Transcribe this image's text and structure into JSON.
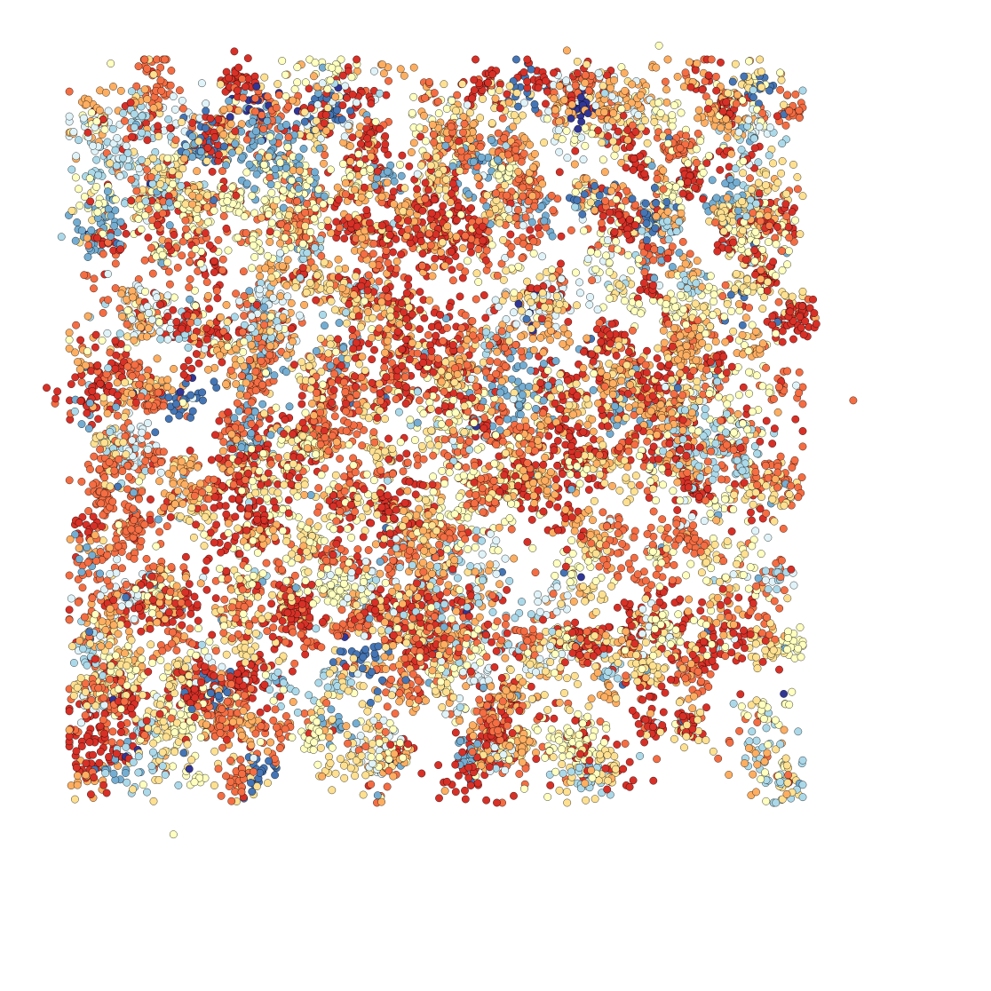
{
  "chart_data": {
    "type": "scatter",
    "title": "",
    "xlabel": "",
    "ylabel": "",
    "axes_visible": false,
    "grid": false,
    "legend": "none",
    "xlim": [
      0,
      1
    ],
    "ylim": [
      0,
      1
    ],
    "marker": "circle",
    "marker_edge_color": "#000000",
    "palette": [
      "#313695",
      "#4575b4",
      "#74add1",
      "#abd9e9",
      "#e0f3f8",
      "#ffffbf",
      "#fee090",
      "#fdae61",
      "#f46d43",
      "#d73027"
    ],
    "approx_point_count": 14000,
    "data_region": {
      "x": [
        0.08,
        0.8
      ],
      "y": [
        0.2,
        0.93
      ]
    },
    "outliers": [
      {
        "x": 0.175,
        "y": 0.158,
        "color_index": 5
      },
      {
        "x": 0.191,
        "y": 0.224,
        "color_index": 0
      },
      {
        "x": 0.449,
        "y": 0.202,
        "color_index": 7
      },
      {
        "x": 0.529,
        "y": 0.204,
        "color_index": 5
      },
      {
        "x": 0.861,
        "y": 0.596,
        "color_index": 8
      },
      {
        "x": 0.665,
        "y": 0.954,
        "color_index": 5
      },
      {
        "x": 0.572,
        "y": 0.949,
        "color_index": 7
      },
      {
        "x": 0.062,
        "y": 0.761,
        "color_index": 3
      }
    ],
    "clusters": [
      {
        "x": 0.12,
        "y": 0.83,
        "color_index": 3,
        "n": 60,
        "spread": 0.018
      },
      {
        "x": 0.1,
        "y": 0.77,
        "color_index": 2,
        "n": 50,
        "spread": 0.015
      },
      {
        "x": 0.27,
        "y": 0.85,
        "color_index": 2,
        "n": 90,
        "spread": 0.022
      },
      {
        "x": 0.33,
        "y": 0.89,
        "color_index": 1,
        "n": 25,
        "spread": 0.01
      },
      {
        "x": 0.66,
        "y": 0.78,
        "color_index": 1,
        "n": 30,
        "spread": 0.01
      },
      {
        "x": 0.73,
        "y": 0.8,
        "color_index": 2,
        "n": 30,
        "spread": 0.012
      },
      {
        "x": 0.19,
        "y": 0.59,
        "color_index": 1,
        "n": 30,
        "spread": 0.012
      },
      {
        "x": 0.52,
        "y": 0.61,
        "color_index": 2,
        "n": 60,
        "spread": 0.02
      },
      {
        "x": 0.71,
        "y": 0.55,
        "color_index": 3,
        "n": 60,
        "spread": 0.02
      },
      {
        "x": 0.46,
        "y": 0.39,
        "color_index": 3,
        "n": 120,
        "spread": 0.035
      },
      {
        "x": 0.21,
        "y": 0.3,
        "color_index": 1,
        "n": 30,
        "spread": 0.01
      },
      {
        "x": 0.37,
        "y": 0.33,
        "color_index": 1,
        "n": 25,
        "spread": 0.01
      },
      {
        "x": 0.76,
        "y": 0.76,
        "color_index": 5,
        "n": 70,
        "spread": 0.018
      },
      {
        "x": 0.73,
        "y": 0.59,
        "color_index": 5,
        "n": 70,
        "spread": 0.022
      },
      {
        "x": 0.58,
        "y": 0.25,
        "color_index": 5,
        "n": 80,
        "spread": 0.02
      },
      {
        "x": 0.18,
        "y": 0.27,
        "color_index": 5,
        "n": 40,
        "spread": 0.015
      },
      {
        "x": 0.49,
        "y": 0.5,
        "color_index": 5,
        "n": 90,
        "spread": 0.03
      },
      {
        "x": 0.3,
        "y": 0.8,
        "color_index": 5,
        "n": 70,
        "spread": 0.025
      },
      {
        "x": 0.42,
        "y": 0.64,
        "color_index": 9,
        "n": 180,
        "spread": 0.04
      },
      {
        "x": 0.44,
        "y": 0.78,
        "color_index": 9,
        "n": 120,
        "spread": 0.03
      },
      {
        "x": 0.24,
        "y": 0.49,
        "color_index": 9,
        "n": 110,
        "spread": 0.03
      },
      {
        "x": 0.57,
        "y": 0.55,
        "color_index": 9,
        "n": 100,
        "spread": 0.03
      },
      {
        "x": 0.66,
        "y": 0.62,
        "color_index": 9,
        "n": 100,
        "spread": 0.03
      },
      {
        "x": 0.73,
        "y": 0.36,
        "color_index": 9,
        "n": 60,
        "spread": 0.02
      },
      {
        "x": 0.09,
        "y": 0.6,
        "color_index": 9,
        "n": 40,
        "spread": 0.015
      },
      {
        "x": 0.24,
        "y": 0.92,
        "color_index": 9,
        "n": 35,
        "spread": 0.012
      },
      {
        "x": 0.8,
        "y": 0.68,
        "color_index": 9,
        "n": 40,
        "spread": 0.012
      },
      {
        "x": 0.3,
        "y": 0.38,
        "color_index": 9,
        "n": 50,
        "spread": 0.015
      },
      {
        "x": 0.15,
        "y": 0.39,
        "color_index": 9,
        "n": 50,
        "spread": 0.015
      },
      {
        "x": 0.5,
        "y": 0.25,
        "color_index": 9,
        "n": 30,
        "spread": 0.012
      }
    ],
    "mixture_weights": [
      0.01,
      0.02,
      0.03,
      0.04,
      0.05,
      0.13,
      0.16,
      0.16,
      0.24,
      0.16
    ]
  }
}
